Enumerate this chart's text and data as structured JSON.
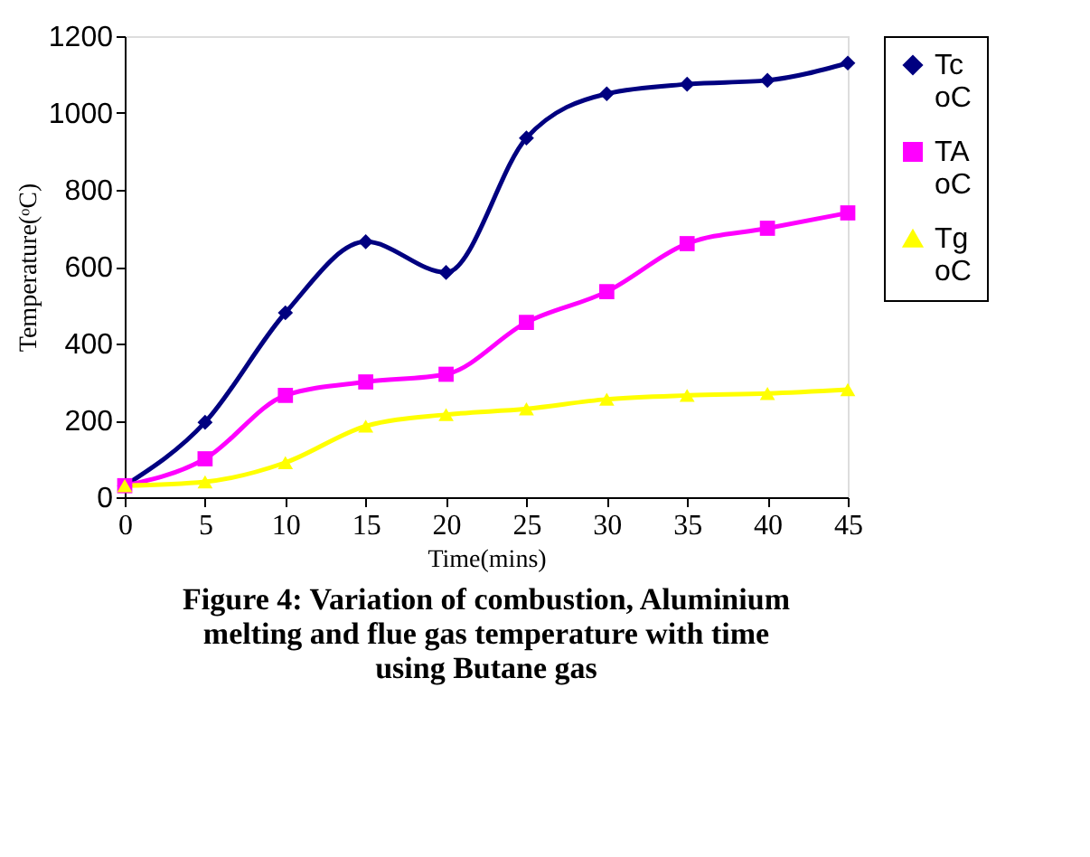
{
  "chart_data": {
    "type": "line",
    "xlabel": "Time(mins)",
    "ylabel": "Temperature(ᵒC)",
    "x": [
      0,
      5,
      10,
      15,
      20,
      25,
      30,
      35,
      40,
      45
    ],
    "series": [
      {
        "name": "Tc oC",
        "color": "#000080",
        "marker": "diamond",
        "values": [
          30,
          195,
          480,
          665,
          585,
          935,
          1050,
          1075,
          1085,
          1130
        ]
      },
      {
        "name": "TA oC",
        "color": "#ff00ff",
        "marker": "square",
        "values": [
          30,
          100,
          265,
          300,
          320,
          455,
          535,
          660,
          700,
          740
        ]
      },
      {
        "name": "Tg oC",
        "color": "#ffff00",
        "marker": "triangle",
        "values": [
          30,
          40,
          90,
          185,
          215,
          230,
          255,
          265,
          270,
          280
        ]
      }
    ],
    "xlim": [
      0,
      45
    ],
    "xticks": [
      0,
      5,
      10,
      15,
      20,
      25,
      30,
      35,
      40,
      45
    ],
    "ylim": [
      0,
      1200
    ],
    "yticks": [
      0,
      200,
      400,
      600,
      800,
      1000,
      1200
    ],
    "grid": false,
    "legend": "right",
    "line_style": "solid",
    "annotations": [
      "Figure 4: Variation of combustion, Aluminium melting and flue gas temperature with time using Butane gas"
    ]
  }
}
